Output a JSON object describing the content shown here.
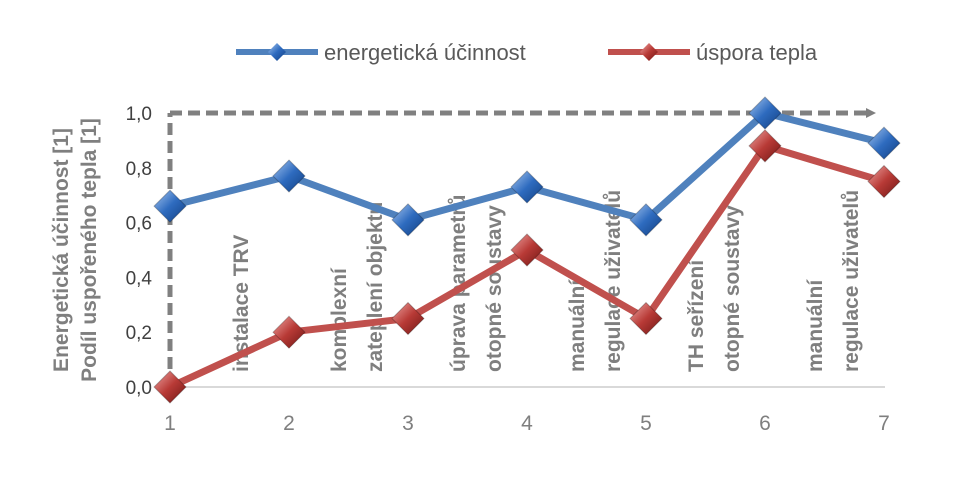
{
  "chart_data": {
    "type": "line",
    "x": [
      1,
      2,
      3,
      4,
      5,
      6,
      7
    ],
    "ylim": [
      0,
      1
    ],
    "yticks": [
      "0,0",
      "0,2",
      "0,4",
      "0,6",
      "0,8",
      "1,0"
    ],
    "ylabel_lines": [
      "Energetická účinnost [1]",
      "Podíl uspořeného tepla [1]"
    ],
    "series": [
      {
        "name": "energetická účinnost",
        "color": "#4f81bd",
        "values": [
          0.66,
          0.77,
          0.61,
          0.73,
          0.61,
          1.0,
          0.89
        ]
      },
      {
        "name": "úspora tepla",
        "color": "#c0504d",
        "values": [
          0.0,
          0.2,
          0.25,
          0.5,
          0.25,
          0.88,
          0.75
        ]
      }
    ],
    "annotations": [
      {
        "at": 1,
        "lines": [
          "instalace TRV"
        ]
      },
      {
        "at": 2,
        "lines": [
          "komplexní",
          "zateplení objektu"
        ]
      },
      {
        "at": 3,
        "lines": [
          "úprava  parametrů",
          "otopné soustavy"
        ]
      },
      {
        "at": 4,
        "lines": [
          "manuální",
          "regulace uživatelů"
        ]
      },
      {
        "at": 5,
        "lines": [
          "TH  seřízení",
          "otopné soustavy"
        ]
      },
      {
        "at": 6,
        "lines": [
          "manuální",
          "regulace uživatelů"
        ]
      }
    ],
    "grid": false,
    "legend_position": "top"
  }
}
